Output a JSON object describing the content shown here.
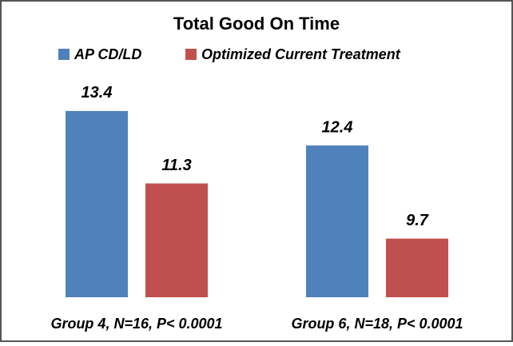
{
  "chart_data": {
    "type": "bar",
    "title": "Total Good On Time",
    "categories": [
      "Group 4, N=16, P< 0.0001",
      "Group 6, N=18, P< 0.0001"
    ],
    "series": [
      {
        "name": "AP CD/LD",
        "color": "#4f81bd",
        "values": [
          13.4,
          12.4
        ]
      },
      {
        "name": "Optimized Current Treatment",
        "color": "#c0504d",
        "values": [
          11.3,
          9.7
        ]
      }
    ],
    "ylim": [
      8,
      14
    ]
  }
}
